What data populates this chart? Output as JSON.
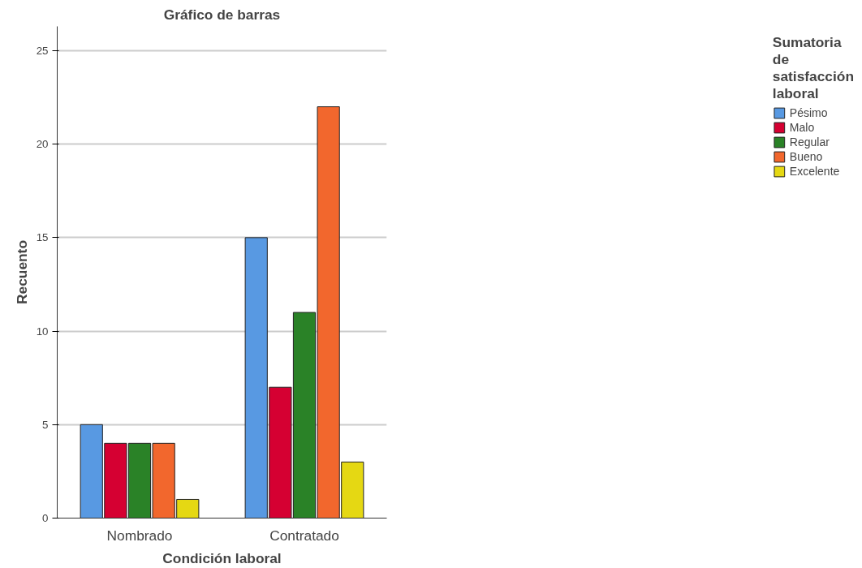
{
  "chart_data": {
    "type": "bar",
    "title": "Gráfico de barras",
    "xlabel": "Condición laboral",
    "ylabel": "Recuento",
    "legend_title": "Sumatoria de satisfacción laboral",
    "categories": [
      "Nombrado",
      "Contratado"
    ],
    "series": [
      {
        "name": "Pésimo",
        "color": "#5899e2",
        "values": [
          5,
          15
        ]
      },
      {
        "name": "Malo",
        "color": "#d50032",
        "values": [
          4,
          7
        ]
      },
      {
        "name": "Regular",
        "color": "#2a8227",
        "values": [
          4,
          11
        ]
      },
      {
        "name": "Bueno",
        "color": "#f2672d",
        "values": [
          4,
          22
        ]
      },
      {
        "name": "Excelente",
        "color": "#e5d813",
        "values": [
          1,
          3
        ]
      }
    ],
    "ylim": [
      0,
      26.3
    ],
    "yticks": [
      0,
      5,
      10,
      15,
      20,
      25
    ],
    "grid": "y",
    "legend": "right"
  }
}
